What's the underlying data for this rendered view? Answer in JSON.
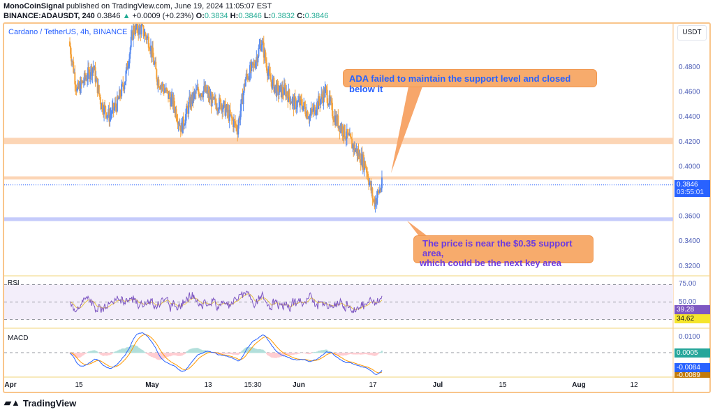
{
  "header": {
    "author": "MonoCoinSignal",
    "published": "published on TradingView.com, June 19, 2024 11:05:07 EST",
    "symbol": "BINANCE:ADAUSDT, 240",
    "last": "0.3846",
    "change": "+0.0009 (+0.23%)",
    "o_label": "O:",
    "o": "0.3834",
    "h_label": "H:",
    "h": "0.3846",
    "l_label": "L:",
    "l": "0.3832",
    "c_label": "C:",
    "c": "0.3846"
  },
  "legend": "Cardano / TetherUS, 4h, BINANCE",
  "currency": "USDT",
  "price_badge": {
    "price": "0.3846",
    "countdown": "03:55:01",
    "color": "#2962ff"
  },
  "callouts": {
    "top": "ADA failed to maintain the support level and closed below it",
    "bottom_line1": "The price is near the $0.35 support area,",
    "bottom_line2": "which could be the next key area"
  },
  "rsi": {
    "label": "RSI",
    "levels": [
      "75.00",
      "50.00"
    ],
    "value": "39.28",
    "ma": "34.62"
  },
  "macd": {
    "label": "MACD",
    "level": "0.0100",
    "hist": "0.0005",
    "macd": "-0.0084",
    "signal": "-0.0089"
  },
  "brand": "TradingView",
  "chart_data": {
    "type": "candlestick",
    "y_ticks": [
      "0.4800",
      "0.4600",
      "0.4400",
      "0.4200",
      "0.4000",
      "0.3600",
      "0.3400",
      "0.3200"
    ],
    "ylim": [
      0.31,
      0.51
    ],
    "x_ticks": [
      "Apr",
      "15",
      "May",
      "13",
      "15:30",
      "Jun",
      "17",
      "Jul",
      "15",
      "Aug",
      "12"
    ],
    "colors": {
      "up": "#5b8def",
      "down": "#f5a33c"
    },
    "zones": [
      {
        "from": 0.4175,
        "to": 0.4225,
        "color": "#fcd5b5"
      },
      {
        "from": 0.389,
        "to": 0.3915,
        "color": "#fcd5b5"
      },
      {
        "from": 0.3555,
        "to": 0.3585,
        "color": "#c5cbfb"
      }
    ],
    "closes": [
      0.5,
      0.46,
      0.47,
      0.48,
      0.45,
      0.44,
      0.45,
      0.47,
      0.51,
      0.51,
      0.5,
      0.47,
      0.46,
      0.45,
      0.43,
      0.45,
      0.46,
      0.46,
      0.45,
      0.45,
      0.44,
      0.43,
      0.47,
      0.48,
      0.5,
      0.47,
      0.46,
      0.46,
      0.45,
      0.45,
      0.44,
      0.45,
      0.46,
      0.44,
      0.43,
      0.42,
      0.41,
      0.4,
      0.37,
      0.3846
    ]
  }
}
